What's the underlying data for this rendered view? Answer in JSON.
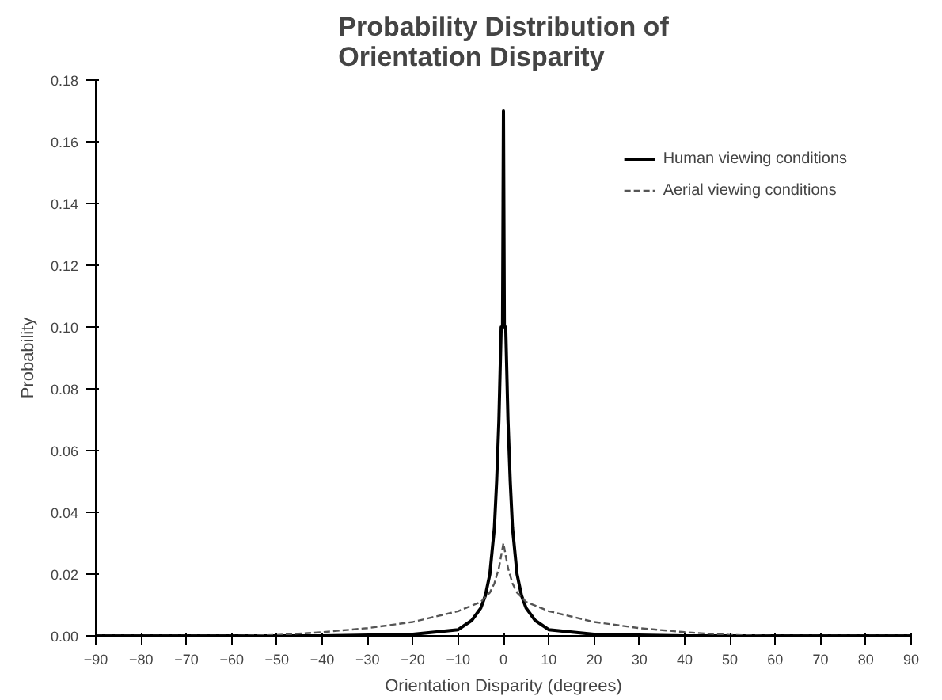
{
  "chart_data": {
    "type": "line",
    "title": "Probability Distribution of\nOrientation Disparity",
    "xlabel": "Orientation Disparity (degrees)",
    "ylabel": "Probability",
    "xlim": [
      -90,
      90
    ],
    "xticks": [
      -90,
      -80,
      -70,
      -60,
      -50,
      -40,
      -30,
      -20,
      -10,
      0,
      10,
      20,
      30,
      40,
      50,
      60,
      70,
      80,
      90
    ],
    "ylim": [
      0,
      0.18
    ],
    "yticks": [
      {
        "value": 0,
        "label": "0.00"
      },
      0.02,
      0.04,
      0.06,
      0.08,
      {
        "value": 0.1,
        "label": "0.10"
      },
      0.12,
      0.14,
      0.16,
      0.18
    ],
    "grid": false,
    "legend": "top right",
    "marker": "none",
    "series": [
      {
        "name": "Human viewing conditions",
        "color": "#000000",
        "line_style": "solid",
        "x": [
          -90,
          -40,
          -20,
          -10,
          -7,
          -5,
          -4,
          -3,
          -2,
          -1.5,
          -1,
          -0.5,
          -0.2,
          0,
          0.2,
          0.5,
          1,
          1.5,
          2,
          3,
          4,
          5,
          7,
          10,
          20,
          40,
          90
        ],
        "values": [
          0,
          0,
          0.0005,
          0.002,
          0.005,
          0.009,
          0.013,
          0.02,
          0.035,
          0.05,
          0.07,
          0.1,
          0.1,
          0.17,
          0.1,
          0.1,
          0.07,
          0.05,
          0.035,
          0.02,
          0.013,
          0.009,
          0.005,
          0.002,
          0.0005,
          0,
          0
        ]
      },
      {
        "name": "Aerial viewing conditions",
        "color": "#555555",
        "line_style": "dashed",
        "x": [
          -90,
          -60,
          -50,
          -40,
          -30,
          -20,
          -10,
          -5,
          -3,
          -2,
          -1,
          0,
          1,
          2,
          3,
          5,
          10,
          20,
          30,
          40,
          50,
          60,
          90
        ],
        "values": [
          0,
          0,
          0.0003,
          0.0012,
          0.0025,
          0.0045,
          0.008,
          0.011,
          0.014,
          0.017,
          0.022,
          0.03,
          0.022,
          0.017,
          0.014,
          0.011,
          0.008,
          0.0045,
          0.0025,
          0.0012,
          0.0003,
          0,
          0
        ]
      }
    ]
  }
}
